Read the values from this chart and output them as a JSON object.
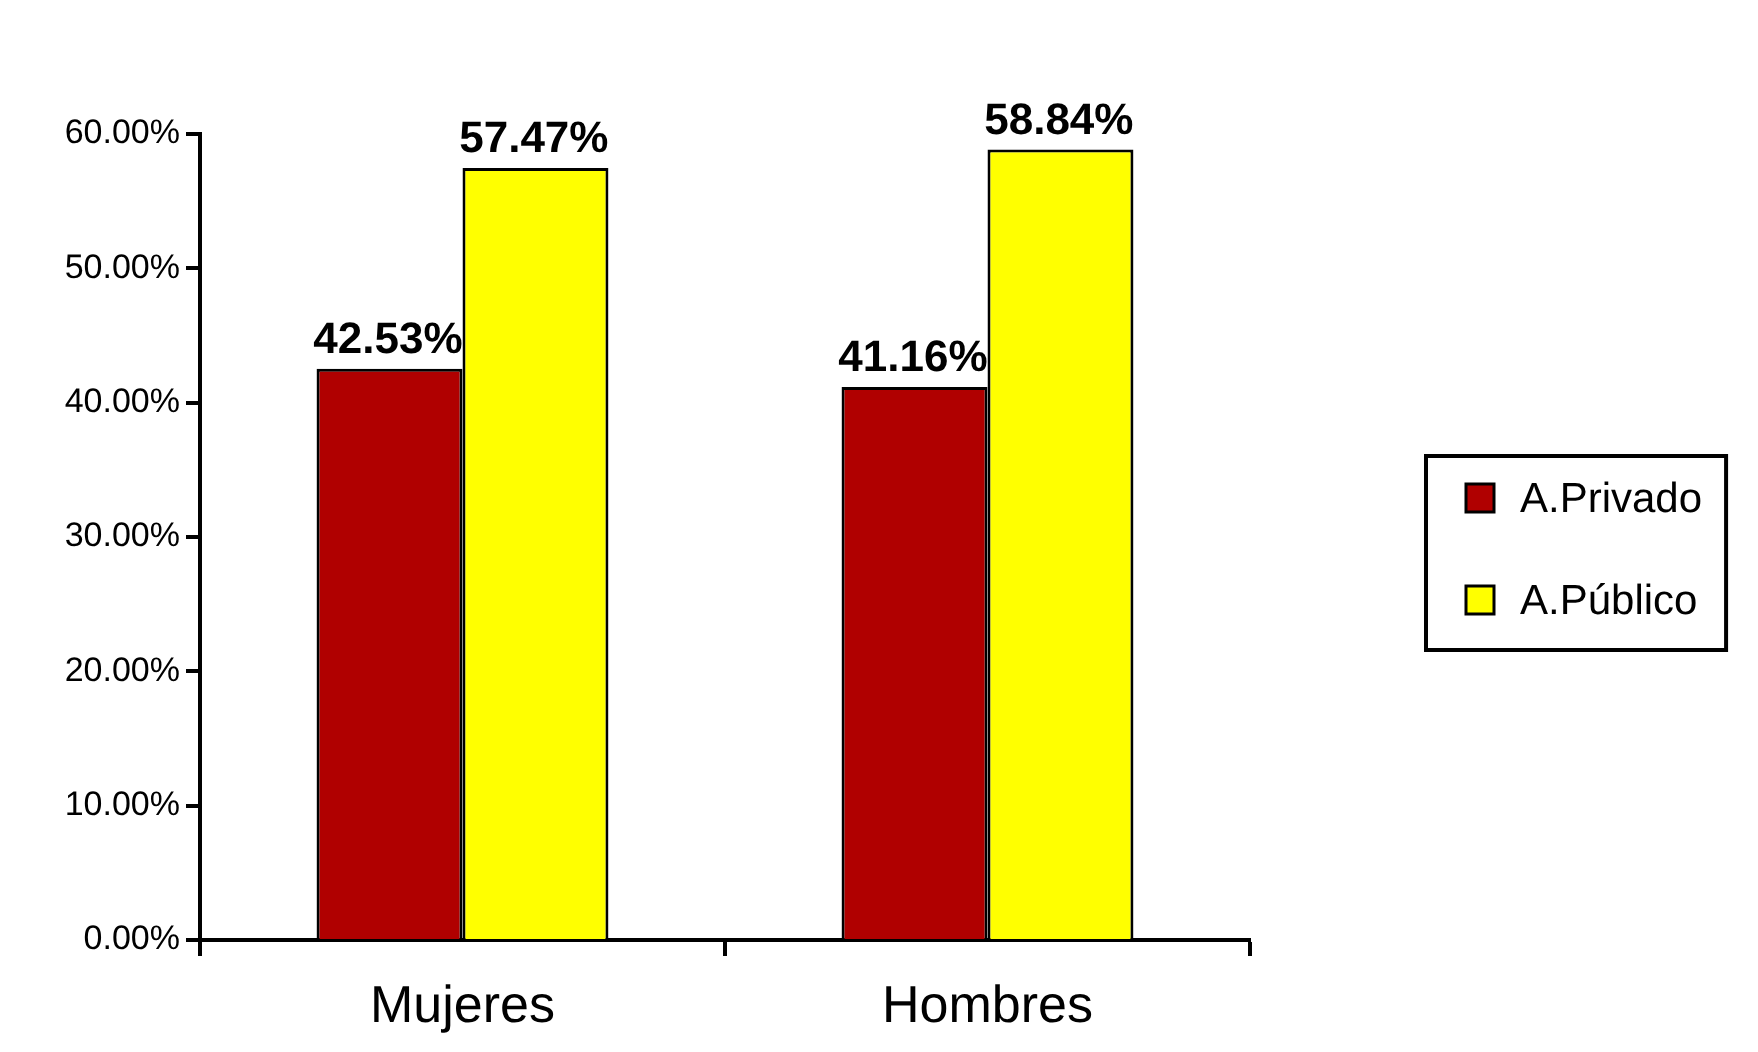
{
  "chart_data": {
    "type": "bar",
    "categories": [
      "Mujeres",
      "Hombres"
    ],
    "series": [
      {
        "name": "A.Privado",
        "color": "#b00000",
        "values": [
          42.53,
          41.16
        ],
        "value_labels": [
          "42.53%",
          "41.16%"
        ]
      },
      {
        "name": "A.Público",
        "color": "#ffff00",
        "values": [
          57.47,
          58.84
        ],
        "value_labels": [
          "57.47%",
          "58.84%"
        ]
      }
    ],
    "ylim": [
      0,
      60
    ],
    "yticks": [
      {
        "value": 0,
        "label": "0.00%"
      },
      {
        "value": 10,
        "label": "10.00%"
      },
      {
        "value": 20,
        "label": "20.00%"
      },
      {
        "value": 30,
        "label": "30.00%"
      },
      {
        "value": 40,
        "label": "40.00%"
      },
      {
        "value": 50,
        "label": "50.00%"
      },
      {
        "value": 60,
        "label": "60.00%"
      }
    ],
    "grid": false,
    "legend": "right"
  }
}
